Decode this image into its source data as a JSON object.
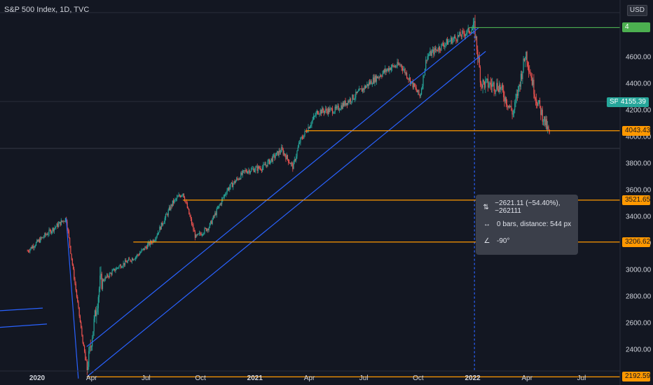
{
  "legend": {
    "title": "S&P 500 Index, 1D, TVC"
  },
  "currency_label": "USD",
  "symbol_label": "SPX",
  "current_price_label": "4155.39",
  "horizontal_lines": [
    {
      "name": "level-4818",
      "value": 4818.62,
      "color": "#4caf50",
      "label": "4"
    },
    {
      "name": "level-4043",
      "value": 4043.43,
      "color": "#ff9800",
      "label": "4043.43"
    },
    {
      "name": "level-3521",
      "value": 3521.65,
      "color": "#ff9800",
      "label": "3521.65"
    },
    {
      "name": "level-3206",
      "value": 3206.62,
      "color": "#ff9800",
      "label": "3206.62"
    },
    {
      "name": "level-2192",
      "value": 2192.59,
      "color": "#ff9800",
      "label": "2192.59"
    }
  ],
  "measure_tooltip": {
    "price_range": "−2621.11 (−54.40%), −262111",
    "bars_distance": "0 bars, distance: 544 px",
    "angle": "-90°"
  },
  "colors": {
    "up": "#26a69a",
    "down": "#ef5350",
    "trendline": "#2962ff",
    "level": "#ff9800"
  },
  "chart_data": {
    "type": "line",
    "title": "S&P 500 Index, 1D, TVC",
    "xlabel": "",
    "ylabel": "",
    "x_tick_labels": [
      "2020",
      "Apr",
      "Jul",
      "Oct",
      "2021",
      "Apr",
      "Jul",
      "Oct",
      "2022",
      "Apr",
      "Jul"
    ],
    "y_tick_labels": [
      "2400.00",
      "2600.00",
      "2800.00",
      "3000.00",
      "3200.00",
      "3400.00",
      "3600.00",
      "3800.00",
      "4000.00",
      "4200.00",
      "4400.00",
      "4600.00"
    ],
    "ylim": [
      2180,
      4880
    ],
    "scale": "linear",
    "grid": false,
    "series": [
      {
        "x": [
          "2019-12",
          "2020-01",
          "2020-02-19",
          "2020-03-23",
          "2020-04",
          "2020-05",
          "2020-06",
          "2020-07",
          "2020-08",
          "2020-09-02",
          "2020-09-23",
          "2020-10",
          "2020-11",
          "2020-12",
          "2021-01",
          "2021-02",
          "2021-03-04",
          "2021-03",
          "2021-04",
          "2021-05",
          "2021-06",
          "2021-07",
          "2021-08",
          "2021-09-02",
          "2021-10-04",
          "2021-10",
          "2021-11",
          "2021-12",
          "2022-01-04",
          "2022-01",
          "2022-02",
          "2022-03-08",
          "2022-03-29",
          "2022-04",
          "2022-05-09"
        ],
        "values": [
          3140,
          3260,
          3386,
          2237,
          2900,
          3020,
          3100,
          3230,
          3500,
          3580,
          3240,
          3320,
          3600,
          3740,
          3770,
          3900,
          3770,
          3960,
          4190,
          4200,
          4300,
          4420,
          4520,
          4540,
          4300,
          4600,
          4700,
          4770,
          4818,
          4400,
          4380,
          4170,
          4630,
          4300,
          4000
        ]
      }
    ],
    "levels": [
      4818.62,
      4043.43,
      3521.65,
      3206.62,
      2192.59
    ]
  }
}
